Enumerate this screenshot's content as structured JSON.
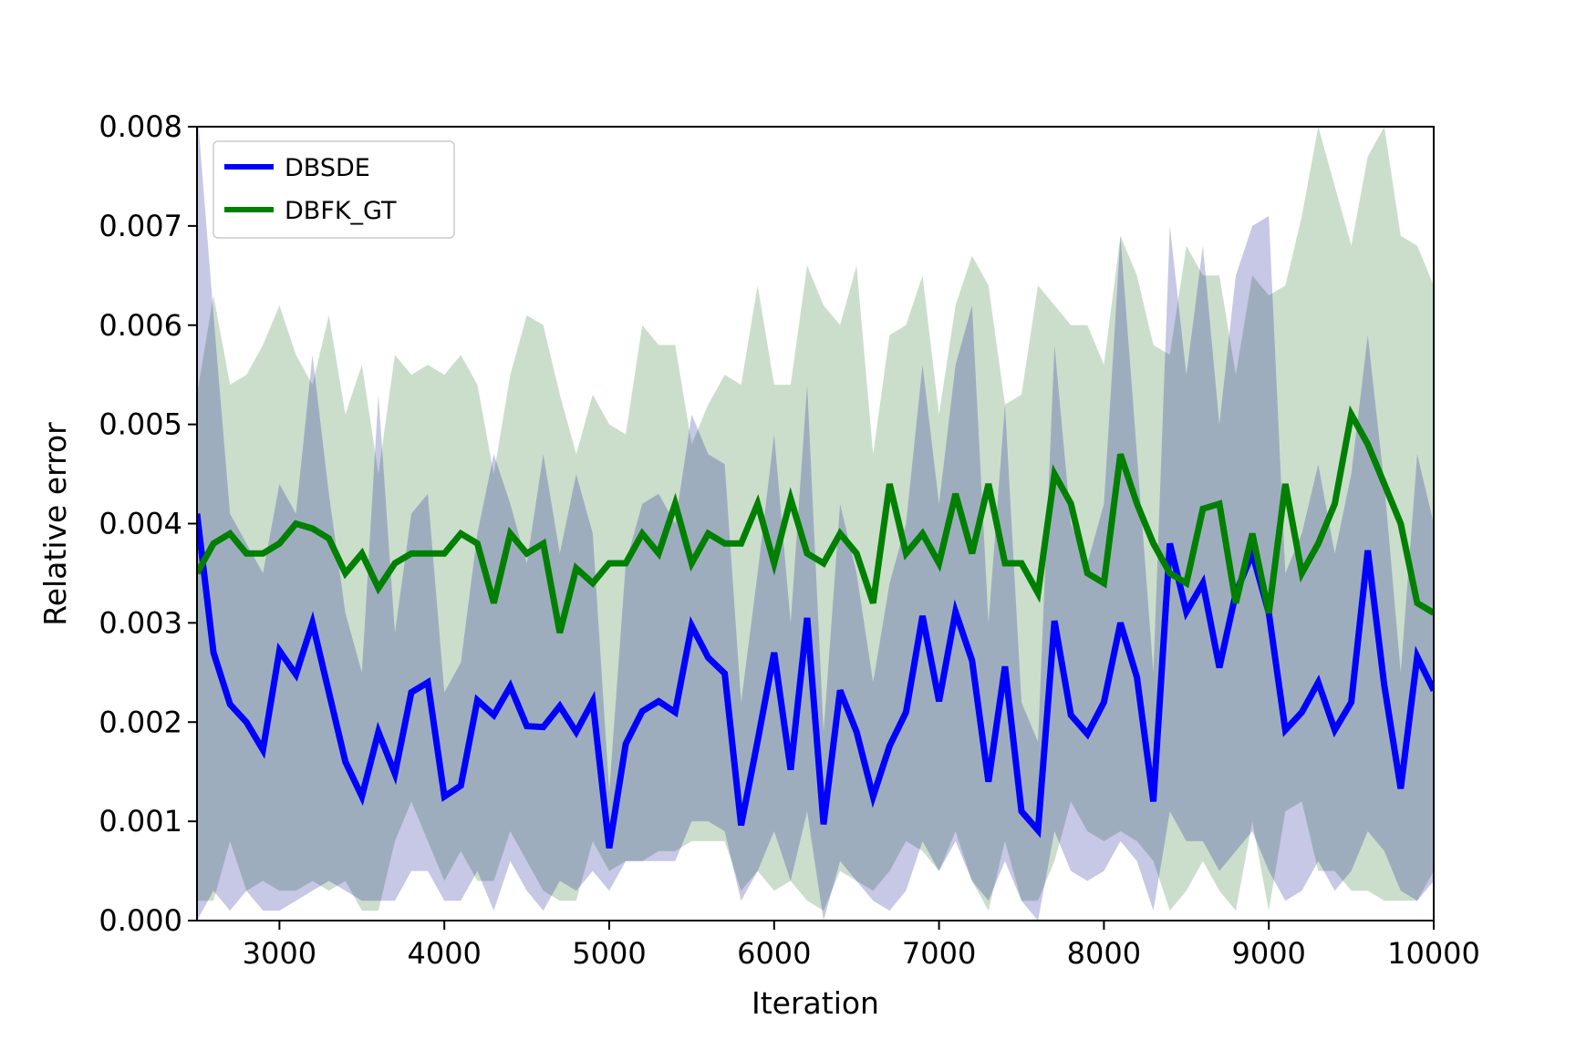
{
  "chart_data": {
    "type": "line",
    "xlabel": "Iteration",
    "ylabel": "Relative error",
    "xlim": [
      2500,
      10000
    ],
    "ylim": [
      0.0,
      0.008
    ],
    "xticks": [
      3000,
      4000,
      5000,
      6000,
      7000,
      8000,
      9000,
      10000
    ],
    "xtick_labels": [
      "3000",
      "4000",
      "5000",
      "6000",
      "7000",
      "8000",
      "9000",
      "10000"
    ],
    "yticks": [
      0.0,
      0.001,
      0.002,
      0.003,
      0.004,
      0.005,
      0.006,
      0.007,
      0.008
    ],
    "ytick_labels": [
      "0.000",
      "0.001",
      "0.002",
      "0.003",
      "0.004",
      "0.005",
      "0.006",
      "0.007",
      "0.008"
    ],
    "grid": false,
    "legend_position": "top-left",
    "x": [
      2500,
      2600,
      2700,
      2800,
      2900,
      3000,
      3100,
      3200,
      3300,
      3400,
      3500,
      3600,
      3700,
      3800,
      3900,
      4000,
      4100,
      4200,
      4300,
      4400,
      4500,
      4600,
      4700,
      4800,
      4900,
      5000,
      5100,
      5200,
      5300,
      5400,
      5500,
      5600,
      5700,
      5800,
      5900,
      6000,
      6100,
      6200,
      6300,
      6400,
      6500,
      6600,
      6700,
      6800,
      6900,
      7000,
      7100,
      7200,
      7300,
      7400,
      7500,
      7600,
      7700,
      7800,
      7900,
      8000,
      8100,
      8200,
      8300,
      8400,
      8500,
      8600,
      8700,
      8800,
      8900,
      9000,
      9100,
      9200,
      9300,
      9400,
      9500,
      9600,
      9700,
      9800,
      9900,
      10000
    ],
    "series": [
      {
        "name": "DBSDE",
        "color": "#0000ff",
        "band_color": "#00008b",
        "values": [
          0.0041,
          0.0027,
          0.00218,
          0.002,
          0.00172,
          0.00272,
          0.00248,
          0.003,
          0.0023,
          0.0016,
          0.00125,
          0.0019,
          0.00148,
          0.0023,
          0.0024,
          0.00125,
          0.00136,
          0.00222,
          0.00207,
          0.00236,
          0.00196,
          0.00195,
          0.00216,
          0.0019,
          0.00221,
          0.00073,
          0.00178,
          0.00211,
          0.00221,
          0.0021,
          0.00297,
          0.00265,
          0.00249,
          0.00096,
          0.00181,
          0.0027,
          0.00152,
          0.00305,
          0.00097,
          0.00232,
          0.0019,
          0.00125,
          0.00176,
          0.0021,
          0.00307,
          0.00221,
          0.00311,
          0.00262,
          0.0014,
          0.00256,
          0.0011,
          0.00091,
          0.00302,
          0.00207,
          0.00188,
          0.0022,
          0.003,
          0.00245,
          0.0012,
          0.0038,
          0.00311,
          0.0034,
          0.00255,
          0.0033,
          0.0037,
          0.0031,
          0.00192,
          0.0021,
          0.0024,
          0.00192,
          0.0022,
          0.00373,
          0.00237,
          0.00133,
          0.00266,
          0.00232
        ],
        "upper": [
          0.0082,
          0.0061,
          0.0041,
          0.0038,
          0.0035,
          0.0044,
          0.0041,
          0.0057,
          0.0043,
          0.0031,
          0.0025,
          0.0053,
          0.0029,
          0.0041,
          0.0043,
          0.0023,
          0.0026,
          0.0039,
          0.0047,
          0.0042,
          0.0036,
          0.0047,
          0.0037,
          0.0045,
          0.0039,
          0.0013,
          0.0036,
          0.0042,
          0.0043,
          0.004,
          0.0051,
          0.0047,
          0.0046,
          0.0022,
          0.0035,
          0.0049,
          0.003,
          0.0054,
          0.0019,
          0.0042,
          0.0035,
          0.0024,
          0.0034,
          0.004,
          0.0056,
          0.0042,
          0.0056,
          0.0062,
          0.003,
          0.0052,
          0.0022,
          0.0018,
          0.0058,
          0.004,
          0.0036,
          0.0042,
          0.0069,
          0.0047,
          0.0025,
          0.007,
          0.0055,
          0.0068,
          0.005,
          0.0065,
          0.007,
          0.0071,
          0.0035,
          0.0039,
          0.0046,
          0.0037,
          0.0045,
          0.0059,
          0.0044,
          0.0025,
          0.0047,
          0.004
        ],
        "lower": [
          0.0,
          0.0003,
          0.0001,
          0.0003,
          0.0001,
          0.0001,
          0.0002,
          0.0003,
          0.0004,
          0.0003,
          0.0002,
          0.0002,
          0.0002,
          0.0005,
          0.0005,
          0.0002,
          0.0002,
          0.0005,
          0.0001,
          0.0006,
          0.0003,
          0.0001,
          0.0004,
          0.0003,
          0.0005,
          0.0003,
          0.0006,
          0.0006,
          0.0006,
          0.0006,
          0.001,
          0.001,
          0.0009,
          0.0002,
          0.0005,
          0.0009,
          0.0004,
          0.0011,
          0.0,
          0.0006,
          0.0004,
          0.0002,
          0.0001,
          0.0003,
          0.0008,
          0.0005,
          0.0008,
          0.0004,
          0.0002,
          0.0006,
          0.0002,
          0.0,
          0.0009,
          0.0005,
          0.0004,
          0.0005,
          0.0008,
          0.0006,
          0.0001,
          0.0011,
          0.0008,
          0.0008,
          0.0005,
          0.0007,
          0.0009,
          0.0005,
          0.0002,
          0.0003,
          0.0006,
          0.0003,
          0.0005,
          0.0009,
          0.0007,
          0.0003,
          0.0002,
          0.0004
        ]
      },
      {
        "name": "DBFK_GT",
        "color": "#008000",
        "band_color": "#2e7d32",
        "values": [
          0.0035,
          0.0038,
          0.0039,
          0.0037,
          0.0037,
          0.0038,
          0.004,
          0.00395,
          0.00385,
          0.0035,
          0.0037,
          0.00335,
          0.0036,
          0.0037,
          0.0037,
          0.0037,
          0.0039,
          0.0038,
          0.0032,
          0.0039,
          0.0037,
          0.0038,
          0.0029,
          0.00355,
          0.0034,
          0.0036,
          0.0036,
          0.0039,
          0.0037,
          0.0042,
          0.0036,
          0.0039,
          0.0038,
          0.0038,
          0.0042,
          0.0036,
          0.00425,
          0.0037,
          0.0036,
          0.0039,
          0.0037,
          0.0032,
          0.0044,
          0.0037,
          0.0039,
          0.0036,
          0.0043,
          0.0037,
          0.0044,
          0.0036,
          0.0036,
          0.0033,
          0.0045,
          0.0042,
          0.0035,
          0.0034,
          0.0047,
          0.0042,
          0.0038,
          0.0035,
          0.0034,
          0.00415,
          0.0042,
          0.0032,
          0.0039,
          0.0031,
          0.0044,
          0.0035,
          0.0038,
          0.0042,
          0.0051,
          0.0048,
          0.0044,
          0.004,
          0.0032,
          0.0031
        ],
        "upper": [
          0.0053,
          0.0063,
          0.0054,
          0.0055,
          0.0058,
          0.0062,
          0.0057,
          0.0054,
          0.0061,
          0.0051,
          0.0056,
          0.0045,
          0.0057,
          0.0055,
          0.0056,
          0.0055,
          0.0057,
          0.0054,
          0.0045,
          0.0055,
          0.0061,
          0.006,
          0.0053,
          0.0047,
          0.0053,
          0.005,
          0.0049,
          0.006,
          0.0058,
          0.0058,
          0.0048,
          0.0052,
          0.0055,
          0.0054,
          0.0064,
          0.0054,
          0.0054,
          0.0066,
          0.0062,
          0.006,
          0.0066,
          0.0047,
          0.0059,
          0.006,
          0.0065,
          0.0051,
          0.0062,
          0.0067,
          0.0064,
          0.0052,
          0.0053,
          0.0064,
          0.0062,
          0.006,
          0.006,
          0.0056,
          0.0069,
          0.0065,
          0.0058,
          0.0057,
          0.0068,
          0.0065,
          0.0065,
          0.0055,
          0.0065,
          0.0063,
          0.0064,
          0.0071,
          0.008,
          0.0074,
          0.0068,
          0.0077,
          0.008,
          0.0069,
          0.0068,
          0.0064
        ],
        "lower": [
          0.0002,
          0.0002,
          0.0008,
          0.0003,
          0.0004,
          0.0003,
          0.0003,
          0.0004,
          0.0003,
          0.0004,
          0.0001,
          0.0001,
          0.0008,
          0.0012,
          0.0008,
          0.0004,
          0.0007,
          0.0004,
          0.0004,
          0.0009,
          0.0006,
          0.0003,
          0.0002,
          0.0002,
          0.0008,
          0.0005,
          0.0006,
          0.0006,
          0.0007,
          0.0007,
          0.0008,
          0.0008,
          0.0008,
          0.0003,
          0.0005,
          0.0003,
          0.0004,
          0.0002,
          0.0001,
          0.0005,
          0.0004,
          0.0003,
          0.0005,
          0.0008,
          0.0007,
          0.0005,
          0.0009,
          0.0004,
          0.0001,
          0.0008,
          0.0002,
          0.0002,
          0.0006,
          0.0012,
          0.0009,
          0.0008,
          0.0009,
          0.0008,
          0.0006,
          0.0001,
          0.0003,
          0.0006,
          0.0003,
          0.0001,
          0.001,
          0.0001,
          0.0011,
          0.0012,
          0.0005,
          0.0005,
          0.0003,
          0.0003,
          0.0002,
          0.0002,
          0.0002,
          0.0005
        ]
      }
    ]
  }
}
